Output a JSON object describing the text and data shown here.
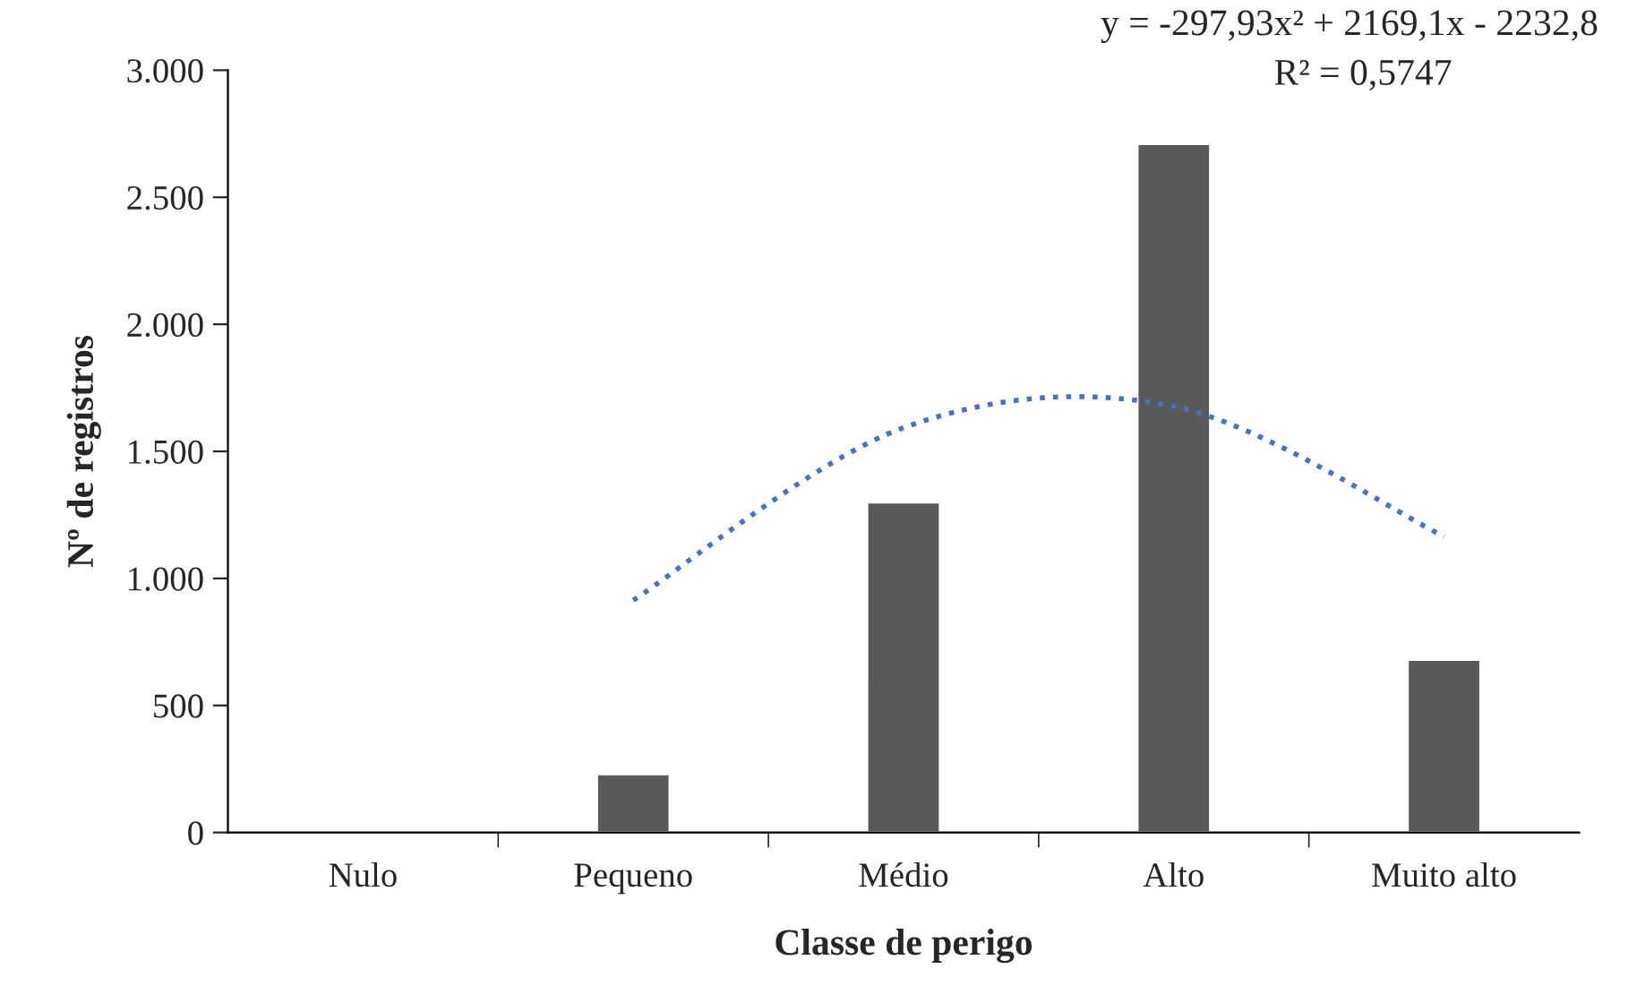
{
  "chart_data": {
    "type": "bar",
    "xlabel": "Classe de perigo",
    "ylabel": "Nº de registros",
    "categories": [
      "Nulo",
      "Pequeno",
      "Médio",
      "Alto",
      "Muito alto"
    ],
    "series": [
      {
        "color": "#595959",
        "values": [
          null,
          230,
          1300,
          2710,
          680
        ]
      },
      {
        "type": "line",
        "color": "#4472c4",
        "line_style": "dotted",
        "values": [
          null,
          914,
          1593,
          1677,
          1165
        ]
      }
    ],
    "ylim": [
      0,
      3000
    ],
    "yticks": [
      {
        "value": 0,
        "label": "0"
      },
      {
        "value": 500,
        "label": "500"
      },
      {
        "value": 1000,
        "label": "1.000"
      },
      {
        "value": 1500,
        "label": "1.500"
      },
      {
        "value": 2000,
        "label": "2.000"
      },
      {
        "value": 2500,
        "label": "2.500"
      },
      {
        "value": 3000,
        "label": "3.000"
      }
    ],
    "grid": false,
    "legend": false,
    "annotations": [
      "y = -297,93x² + 2169,1x - 2232,8",
      "R² = 0,5747"
    ]
  }
}
